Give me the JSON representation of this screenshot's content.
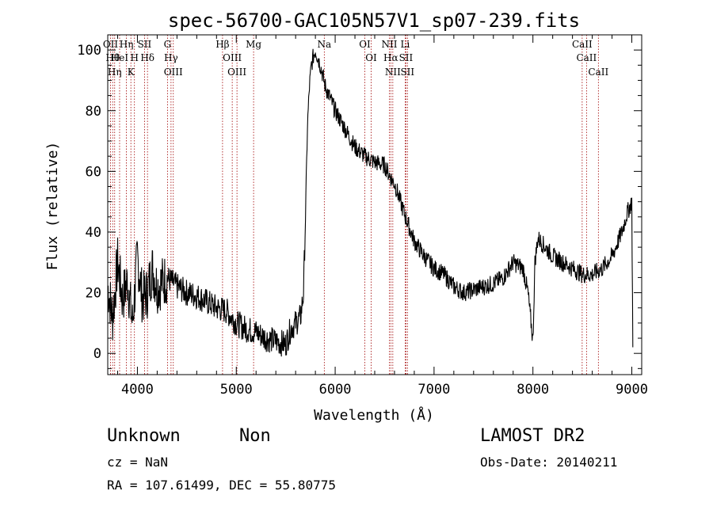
{
  "chart_data": {
    "type": "line",
    "title": "spec-56700-GAC105N57V1_sp07-239.fits",
    "xlabel": "Wavelength (Å)",
    "ylabel": "Flux (relative)",
    "xlim": [
      3700,
      9100
    ],
    "ylim": [
      -7,
      105
    ],
    "xticks": [
      4000,
      5000,
      6000,
      7000,
      8000,
      9000
    ],
    "yticks": [
      0,
      20,
      40,
      60,
      80,
      100
    ],
    "x_tick_labels": [
      "4000",
      "5000",
      "6000",
      "7000",
      "8000",
      "9000"
    ],
    "y_tick_labels": [
      "0",
      "20",
      "40",
      "60",
      "80",
      "100"
    ],
    "grid": false,
    "legend": "none",
    "line_color": "#000000",
    "marker_color": "#a00000",
    "series": [
      {
        "x": [
          3700,
          3750,
          3800,
          3850,
          3900,
          3950,
          4000,
          4050,
          4100,
          4150,
          4200,
          4300,
          4400,
          4500,
          4600,
          4700,
          4800,
          4900,
          5000,
          5100,
          5200,
          5300,
          5400,
          5500,
          5550,
          5600,
          5650,
          5680,
          5700,
          5720,
          5740,
          5760,
          5780,
          5800,
          5850,
          5900,
          5950,
          6000,
          6100,
          6200,
          6300,
          6400,
          6500,
          6560,
          6600,
          6700,
          6800,
          6900,
          7000,
          7100,
          7200,
          7300,
          7400,
          7500,
          7600,
          7700,
          7800,
          7900,
          7950,
          8000,
          8020,
          8050,
          8100,
          8200,
          8300,
          8400,
          8500,
          8600,
          8700,
          8800,
          8900,
          8950,
          9000,
          9010
        ],
        "y": [
          22,
          12,
          30,
          18,
          24,
          10,
          32,
          18,
          20,
          28,
          22,
          25,
          22,
          20,
          19,
          17,
          15,
          14,
          10,
          8,
          7,
          5,
          4,
          3,
          8,
          10,
          12,
          20,
          45,
          75,
          88,
          95,
          98,
          100,
          95,
          88,
          84,
          80,
          74,
          68,
          65,
          63,
          62,
          58,
          56,
          46,
          37,
          32,
          28,
          26,
          22,
          20,
          21,
          22,
          23,
          25,
          30,
          28,
          20,
          4,
          30,
          38,
          36,
          32,
          30,
          28,
          26,
          26,
          28,
          32,
          40,
          46,
          50,
          2
        ]
      }
    ],
    "line_markers": [
      {
        "x": 3728,
        "label": "OII"
      },
      {
        "x": 3750,
        "label": "Hθ"
      },
      {
        "x": 3770,
        "label": "Hη"
      },
      {
        "x": 3820,
        "label": "HeI"
      },
      {
        "x": 3889,
        "label": "Hη"
      },
      {
        "x": 3934,
        "label": "K"
      },
      {
        "x": 3970,
        "label": "H"
      },
      {
        "x": 4072,
        "label": "SII"
      },
      {
        "x": 4102,
        "label": "Hδ"
      },
      {
        "x": 4304,
        "label": "G"
      },
      {
        "x": 4340,
        "label": "Hγ"
      },
      {
        "x": 4363,
        "label": "OIII"
      },
      {
        "x": 4861,
        "label": "Hβ"
      },
      {
        "x": 4959,
        "label": "OIII"
      },
      {
        "x": 5007,
        "label": "OIII"
      },
      {
        "x": 5175,
        "label": "Mg"
      },
      {
        "x": 5890,
        "label": "Na"
      },
      {
        "x": 6300,
        "label": "OI"
      },
      {
        "x": 6364,
        "label": "OI"
      },
      {
        "x": 6548,
        "label": "NII"
      },
      {
        "x": 6563,
        "label": "Hα"
      },
      {
        "x": 6583,
        "label": "NII"
      },
      {
        "x": 6708,
        "label": "Li"
      },
      {
        "x": 6716,
        "label": "SII"
      },
      {
        "x": 6731,
        "label": "SII"
      },
      {
        "x": 8498,
        "label": "CaII"
      },
      {
        "x": 8542,
        "label": "CaII"
      },
      {
        "x": 8662,
        "label": "CaII"
      }
    ]
  },
  "info": {
    "class": "Unknown",
    "subclass": "Non",
    "survey": "LAMOST DR2",
    "cz": "cz = NaN",
    "obs_date": "Obs-Date: 20140211",
    "coords": "RA = 107.61499, DEC =  55.80775"
  }
}
